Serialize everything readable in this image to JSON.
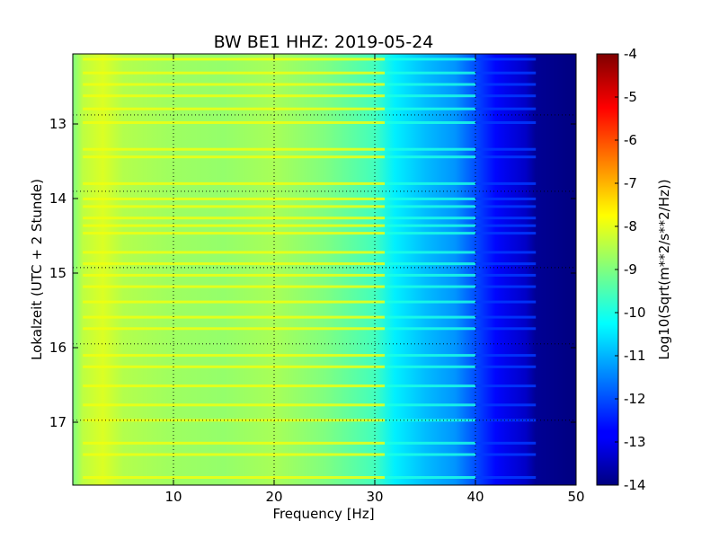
{
  "chart_data": {
    "type": "heatmap",
    "title": "BW BE1 HHZ: 2019-05-24",
    "xlabel": "Frequency [Hz]",
    "ylabel": "Lokalzeit (UTC + 2 Stunde)",
    "xlim": [
      0,
      50
    ],
    "ylim": [
      12.2,
      17.85
    ],
    "x_ticks": [
      "10",
      "20",
      "30",
      "40",
      "50"
    ],
    "y_ticks": [
      "13",
      "14",
      "15",
      "16",
      "17"
    ],
    "grid": true,
    "colormap": "jet",
    "colorbar": {
      "label": "Log10(Sqrt(m**2/s**2/Hz))",
      "range": [
        -14,
        -4
      ],
      "ticks": [
        "-4",
        "-5",
        "-6",
        "-7",
        "-8",
        "-9",
        "-10",
        "-11",
        "-12",
        "-13",
        "-14"
      ]
    },
    "spectral_profile": {
      "frequency_hz": [
        0,
        1,
        3,
        5,
        10,
        15,
        20,
        25,
        30,
        32,
        35,
        38,
        40,
        42,
        45,
        46,
        50
      ],
      "log10_amplitude": [
        -9.0,
        -8.4,
        -8.1,
        -8.5,
        -8.7,
        -8.8,
        -8.6,
        -9.0,
        -9.6,
        -10.4,
        -10.9,
        -11.3,
        -12.0,
        -12.7,
        -13.3,
        -13.8,
        -14.0
      ]
    },
    "bright_time_lines_hours": [
      12.27,
      12.45,
      12.6,
      12.75,
      12.92,
      13.1,
      13.45,
      13.55,
      13.9,
      14.1,
      14.2,
      14.35,
      14.45,
      14.55,
      14.8,
      14.95,
      15.1,
      15.25,
      15.45,
      15.65,
      15.8,
      16.15,
      16.3,
      16.55,
      16.8,
      17.0,
      17.3,
      17.45,
      17.75
    ]
  }
}
